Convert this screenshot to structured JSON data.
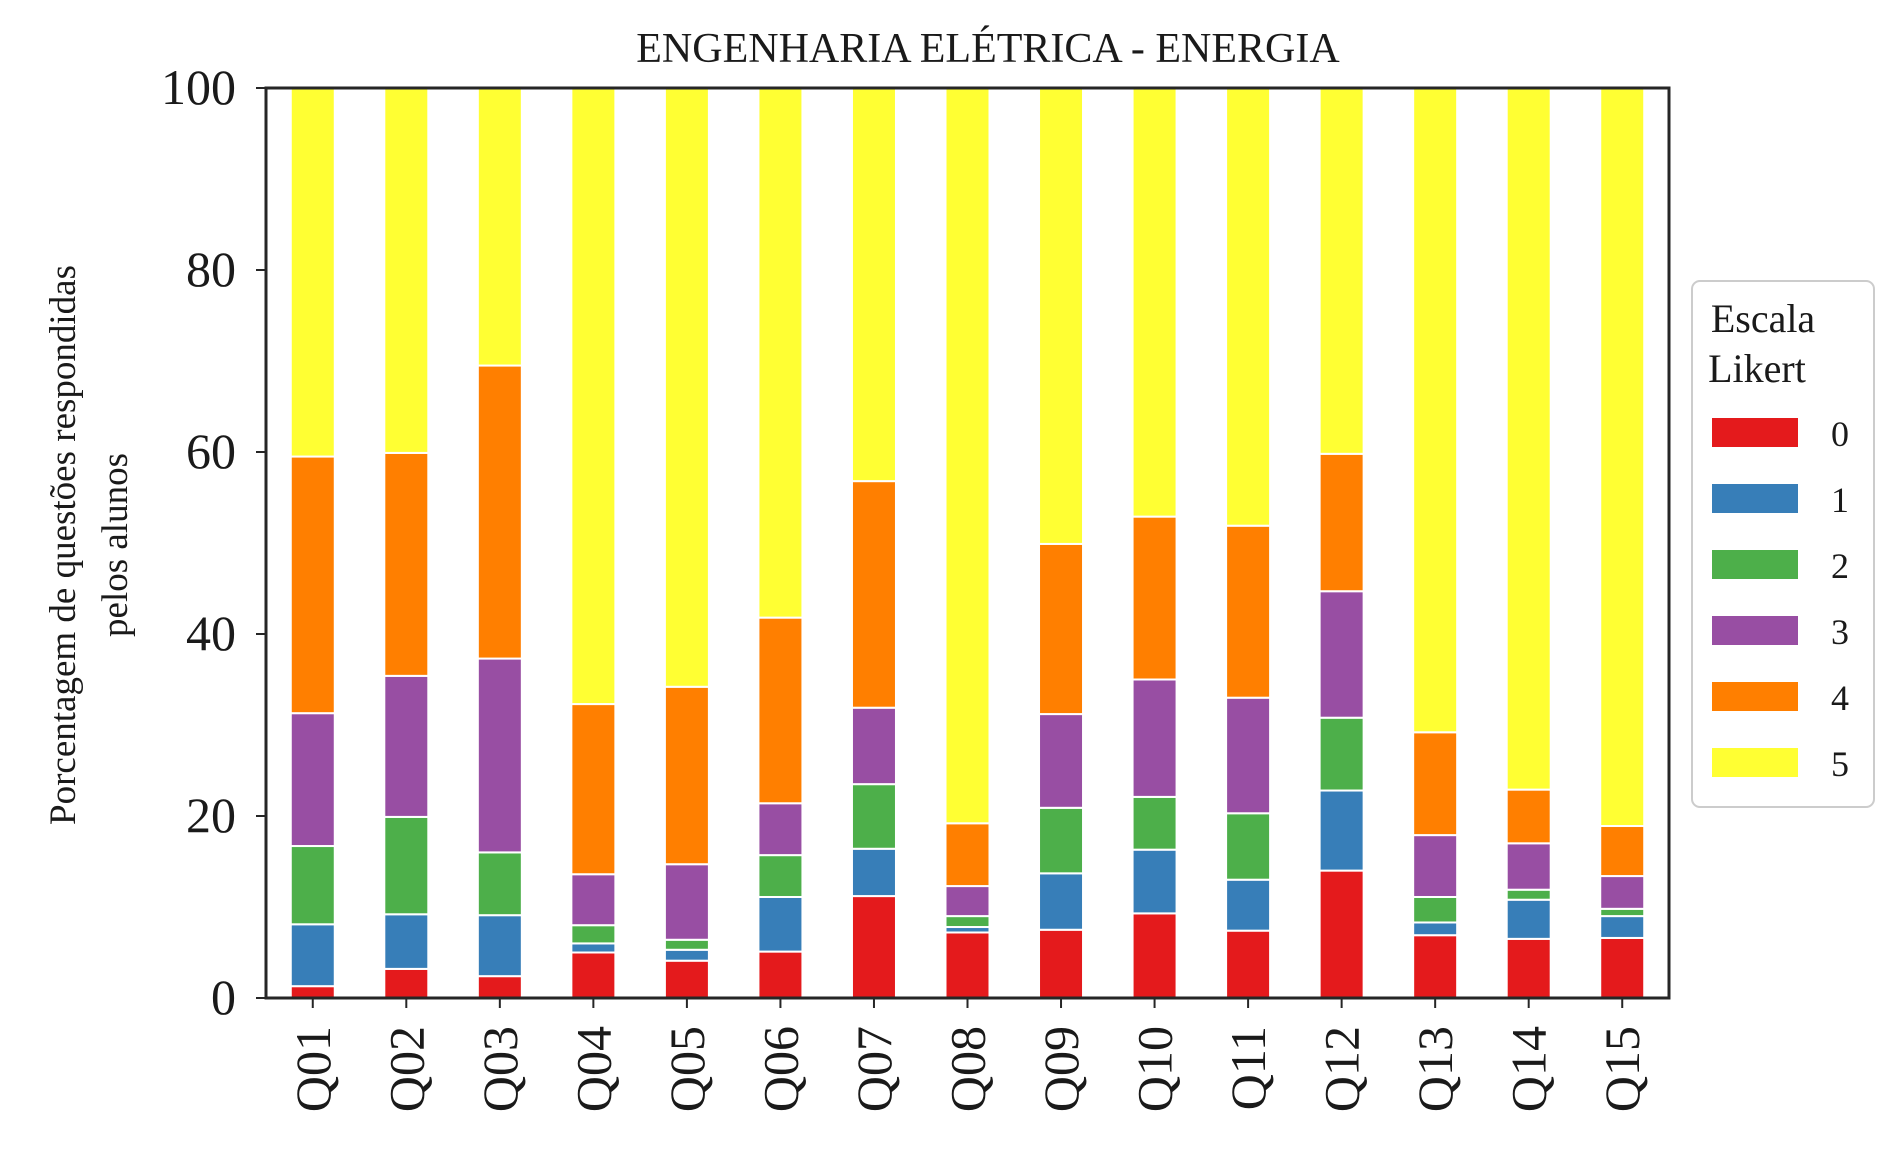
{
  "chart_data": {
    "type": "bar",
    "stacked": true,
    "title": "ENGENHARIA ELÉTRICA - ENERGIA",
    "xlabel": "",
    "ylabel": [
      "Porcentagem de questões respondidas",
      "pelos alunos"
    ],
    "ylim": [
      0,
      100
    ],
    "yticks": [
      "0",
      "20",
      "40",
      "60",
      "80",
      "100"
    ],
    "grid": false,
    "legend": {
      "title": [
        "Escala",
        "Likert"
      ],
      "placement": "right"
    },
    "categories": [
      "Q01",
      "Q02",
      "Q03",
      "Q04",
      "Q05",
      "Q06",
      "Q07",
      "Q08",
      "Q09",
      "Q10",
      "Q11",
      "Q12",
      "Q13",
      "Q14",
      "Q15"
    ],
    "series": [
      {
        "name": "0",
        "color": "#e41a1c",
        "values": [
          1.3,
          3.2,
          2.4,
          5.0,
          4.1,
          5.1,
          11.2,
          7.2,
          7.5,
          9.3,
          7.4,
          14.0,
          6.9,
          6.5,
          6.6
        ]
      },
      {
        "name": "1",
        "color": "#377eb8",
        "values": [
          6.8,
          6.0,
          6.7,
          1.0,
          1.2,
          6.0,
          5.2,
          0.6,
          6.2,
          7.0,
          5.6,
          8.8,
          1.4,
          4.3,
          2.4
        ]
      },
      {
        "name": "2",
        "color": "#4daf4a",
        "values": [
          8.6,
          10.7,
          6.9,
          2.0,
          1.1,
          4.6,
          7.1,
          1.2,
          7.2,
          5.8,
          7.3,
          8.0,
          2.8,
          1.1,
          0.8
        ]
      },
      {
        "name": "3",
        "color": "#984ea3",
        "values": [
          14.6,
          15.5,
          21.3,
          5.6,
          8.3,
          5.7,
          8.4,
          3.3,
          10.3,
          12.9,
          12.7,
          13.9,
          6.8,
          5.1,
          3.6
        ]
      },
      {
        "name": "4",
        "color": "#ff7f00",
        "values": [
          28.2,
          24.5,
          32.2,
          18.7,
          19.5,
          20.4,
          24.9,
          6.9,
          18.7,
          17.9,
          18.9,
          15.1,
          11.3,
          5.9,
          5.5
        ]
      },
      {
        "name": "5",
        "color": "#ffff33",
        "values": [
          40.5,
          40.1,
          30.5,
          67.7,
          65.8,
          58.2,
          43.2,
          80.8,
          50.1,
          47.1,
          48.1,
          40.2,
          70.8,
          77.1,
          81.1
        ]
      }
    ]
  }
}
